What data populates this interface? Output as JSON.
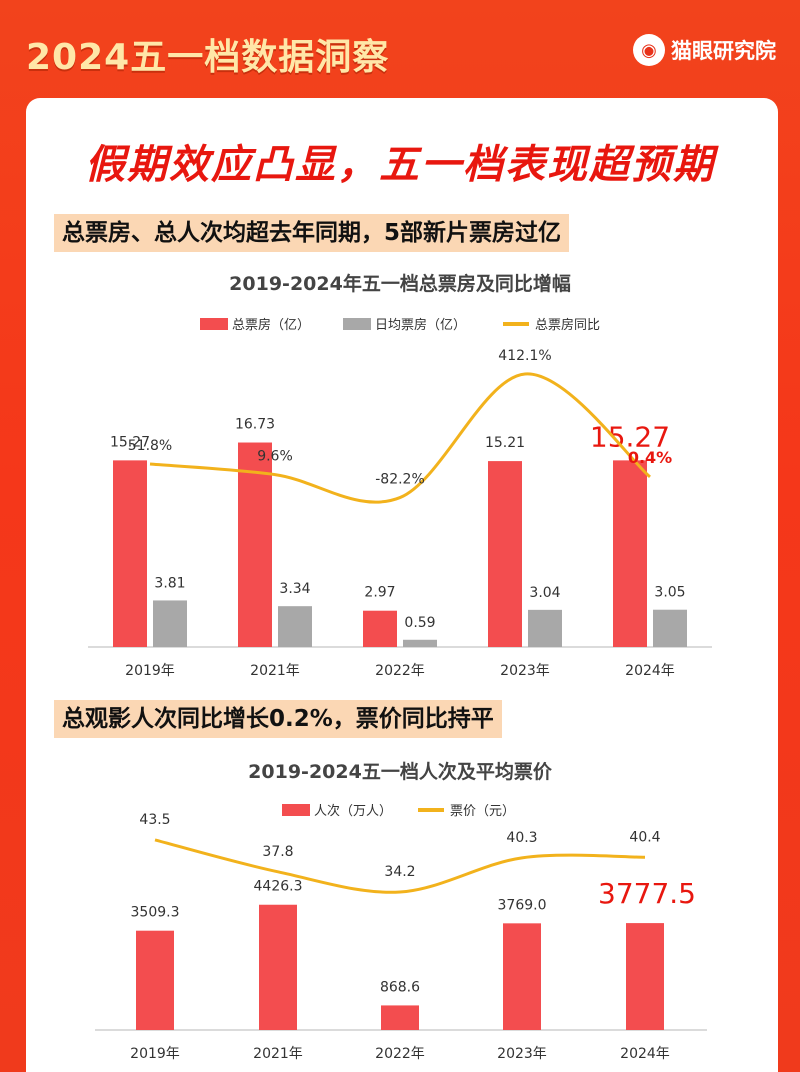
{
  "header": {
    "title": "2024五一档数据洞察",
    "brand": "猫眼研究院"
  },
  "headline": "假期效应凸显，五一档表现超预期",
  "sections": [
    {
      "subtitle": "总票房、总人次均超去年同期，5部新片票房过亿"
    },
    {
      "subtitle": "总观影人次同比增长0.2%，票价同比持平"
    }
  ],
  "colors": {
    "bar_primary": "#f34d4f",
    "bar_secondary": "#a8a8a8",
    "line": "#f2b21c",
    "highlight": "#e8170f"
  },
  "chart_data": [
    {
      "type": "bar",
      "title": "2019-2024年五一档总票房及同比增幅",
      "categories": [
        "2019年",
        "2021年",
        "2022年",
        "2023年",
        "2024年"
      ],
      "series": [
        {
          "name": "总票房（亿）",
          "kind": "bar",
          "values": [
            15.27,
            16.73,
            2.97,
            15.21,
            15.27
          ],
          "labels": [
            "15.27",
            "16.73",
            "2.97",
            "15.21",
            "15.27"
          ]
        },
        {
          "name": "日均票房（亿）",
          "kind": "bar",
          "values": [
            3.81,
            3.34,
            0.59,
            3.04,
            3.05
          ],
          "labels": [
            "3.81",
            "3.34",
            "0.59",
            "3.04",
            "3.05"
          ]
        },
        {
          "name": "总票房同比",
          "kind": "line",
          "values": [
            51.8,
            9.6,
            -82.2,
            412.1,
            0.4
          ],
          "labels": [
            "51.8%",
            "9.6%",
            "-82.2%",
            "412.1%",
            "0.4%"
          ]
        }
      ],
      "legend_position": "top",
      "highlight_index": 4
    },
    {
      "type": "bar",
      "title": "2019-2024五一档人次及平均票价",
      "categories": [
        "2019年",
        "2021年",
        "2022年",
        "2023年",
        "2024年"
      ],
      "series": [
        {
          "name": "人次（万人）",
          "kind": "bar",
          "values": [
            3509.3,
            4426.3,
            868.6,
            3769.0,
            3777.5
          ],
          "labels": [
            "3509.3",
            "4426.3",
            "868.6",
            "3769.0",
            "3777.5"
          ]
        },
        {
          "name": "票价（元）",
          "kind": "line",
          "values": [
            43.5,
            37.8,
            34.2,
            40.3,
            40.4
          ],
          "labels": [
            "43.5",
            "37.8",
            "34.2",
            "40.3",
            "40.4"
          ]
        }
      ],
      "legend_position": "top",
      "highlight_index": 4
    }
  ]
}
